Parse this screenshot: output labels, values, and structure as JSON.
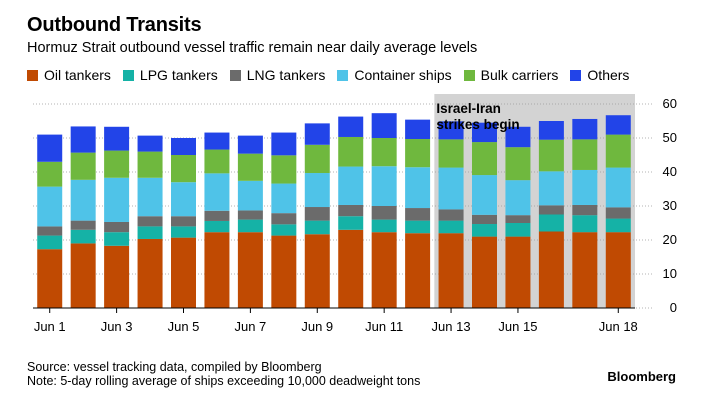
{
  "header": {
    "title": "Outbound Transits",
    "subtitle": "Hormuz Strait outbound vessel traffic remain near daily average levels"
  },
  "legend": [
    {
      "label": "Oil tankers",
      "color": "#c04a02"
    },
    {
      "label": "LPG tankers",
      "color": "#15b2a6"
    },
    {
      "label": "LNG tankers",
      "color": "#6b6b6b"
    },
    {
      "label": "Container ships",
      "color": "#4fc3e8"
    },
    {
      "label": "Bulk carriers",
      "color": "#6fb83e"
    },
    {
      "label": "Others",
      "color": "#2244e8"
    }
  ],
  "annotation": {
    "line1": "Israel-Iran",
    "line2": "strikes begin",
    "shade_color": "#d3d3d3"
  },
  "footer": {
    "source": "Source: vessel tracking data, compiled by Bloomberg",
    "note": "Note: 5-day rolling average of ships exceeding 10,000 deadweight tons",
    "brand": "Bloomberg"
  },
  "chart_data": {
    "type": "bar",
    "stacked": true,
    "categories": [
      "Jun 1",
      "Jun 2",
      "Jun 3",
      "Jun 4",
      "Jun 5",
      "Jun 6",
      "Jun 7",
      "Jun 8",
      "Jun 9",
      "Jun 10",
      "Jun 11",
      "Jun 12",
      "Jun 13",
      "Jun 14",
      "Jun 15",
      "Jun 16",
      "Jun 17",
      "Jun 18"
    ],
    "x_tick_labels": [
      "Jun 1",
      "",
      "Jun 3",
      "",
      "Jun 5",
      "",
      "Jun 7",
      "",
      "Jun 9",
      "",
      "Jun 11",
      "",
      "Jun 13",
      "",
      "Jun 15",
      "",
      "",
      "Jun 18"
    ],
    "y_ticks": [
      0,
      10,
      20,
      30,
      40,
      50,
      60
    ],
    "ylim": [
      0,
      60
    ],
    "shaded_range": [
      "Jun 13",
      "Jun 18"
    ],
    "grid": true,
    "legend_position": "top",
    "series": [
      {
        "name": "Oil tankers",
        "values": [
          17.3,
          19,
          18.3,
          20.3,
          20.7,
          22.3,
          22.3,
          21.3,
          21.7,
          23,
          22.3,
          22,
          22,
          21,
          21,
          22.5,
          22.3,
          22.3
        ]
      },
      {
        "name": "LPG tankers",
        "values": [
          4,
          4,
          4,
          3.7,
          3.3,
          3.3,
          3.7,
          3.3,
          4,
          4,
          3.7,
          3.7,
          3.7,
          3.7,
          4,
          5,
          5,
          4
        ]
      },
      {
        "name": "LNG tankers",
        "values": [
          2.7,
          2.7,
          3,
          3,
          3,
          3,
          2.7,
          3.3,
          4,
          3.3,
          4,
          3.7,
          3.3,
          2.7,
          2.3,
          2.7,
          3,
          3.3
        ]
      },
      {
        "name": "Container ships",
        "values": [
          11.7,
          12,
          13,
          11.3,
          10,
          11,
          8.7,
          8.7,
          10,
          11.3,
          11.7,
          12,
          12.3,
          11.7,
          10.3,
          10,
          10.3,
          11.7
        ]
      },
      {
        "name": "Bulk carriers",
        "values": [
          7.3,
          8,
          8,
          7.7,
          8,
          7,
          8,
          8.3,
          8.3,
          8.7,
          8.3,
          8.3,
          8.3,
          9.7,
          9.7,
          9.3,
          9,
          9.7
        ]
      },
      {
        "name": "Others",
        "values": [
          8,
          7.7,
          7,
          4.7,
          5,
          5,
          5.3,
          6.7,
          6.3,
          6,
          7.3,
          5.7,
          5.3,
          5.7,
          6,
          5.5,
          6,
          5.7
        ]
      }
    ]
  }
}
